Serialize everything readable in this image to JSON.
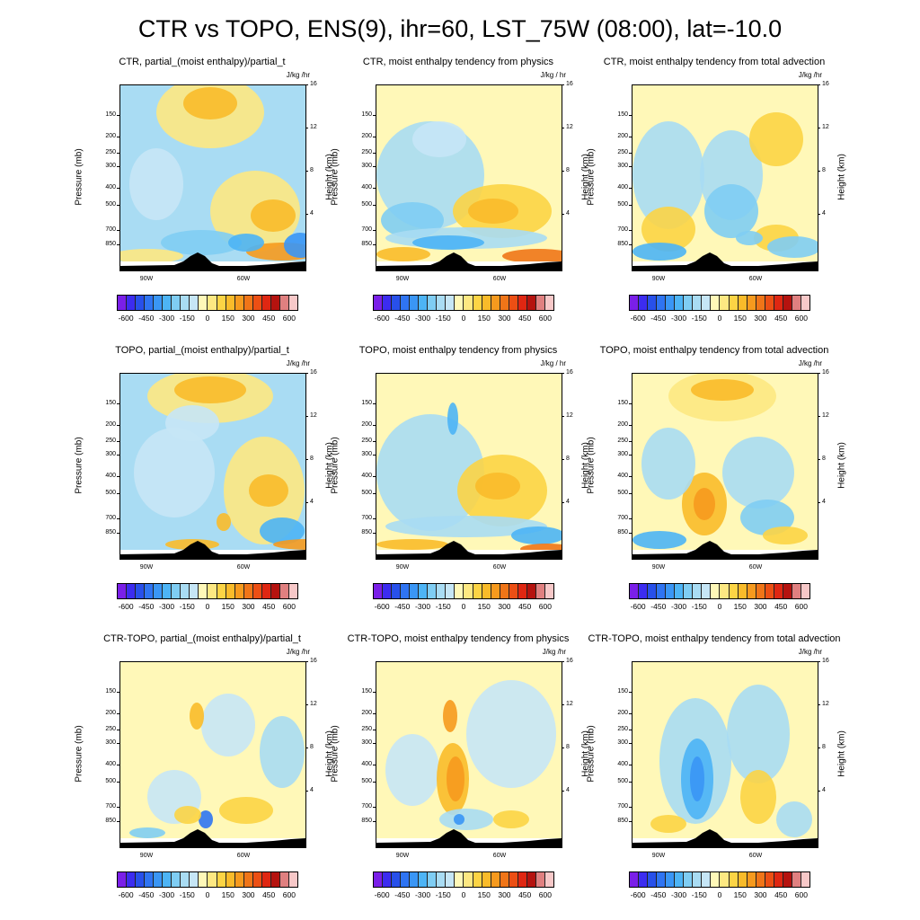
{
  "title": "CTR vs TOPO, ENS(9), ihr=60, LST_75W (08:00), lat=-10.0",
  "common": {
    "units": "J/kg /hr",
    "ylabel_left": "Pressure (mb)",
    "ylabel_right": "Height (km)",
    "pressure_ticks": [
      "150",
      "200",
      "250",
      "300",
      "400",
      "500",
      "700",
      "850"
    ],
    "height_ticks": [
      "16",
      "12",
      "8",
      "4"
    ],
    "x_ticks": [
      "90W",
      "60W"
    ],
    "colorbar_labels": [
      "-600",
      "-450",
      "-300",
      "-150",
      "0",
      "150",
      "300",
      "450",
      "600"
    ],
    "colorbar_colors": [
      "#7a1fe8",
      "#3c2cf0",
      "#2850ea",
      "#2f74f2",
      "#3a96f5",
      "#4db4f5",
      "#7fcdf3",
      "#a9dcf3",
      "#c6e6f6",
      "#fff8b8",
      "#fde882",
      "#fcd445",
      "#f9bb2a",
      "#f69a1e",
      "#f07518",
      "#ec4f14",
      "#df2712",
      "#b5130f",
      "#e08080",
      "#f7c8c8"
    ]
  },
  "panels": [
    {
      "title": "CTR, partial_(moist enthalpy)/partial_t",
      "units": "J/kg /hr"
    },
    {
      "title": "CTR, moist enthalpy tendency from physics",
      "units": "J/kg / hr"
    },
    {
      "title": "CTR, moist enthalpy tendency from total advection",
      "units": "J/kg /hr"
    },
    {
      "title": "TOPO, partial_(moist enthalpy)/partial_t",
      "units": "J/kg /hr"
    },
    {
      "title": "TOPO, moist enthalpy tendency from physics",
      "units": "J/kg / hr"
    },
    {
      "title": "TOPO, moist enthalpy tendency from total advection",
      "units": "J/kg /hr"
    },
    {
      "title": "CTR-TOPO, partial_(moist enthalpy)/partial_t",
      "units": "J/kg /hr"
    },
    {
      "title": "CTR-TOPO, moist enthalpy tendency from physics",
      "units": "J/kg /hr"
    },
    {
      "title": "CTR-TOPO, moist enthalpy tendency from total advection",
      "units": "J/kg /hr"
    }
  ],
  "chart_data": {
    "type": "heatmap",
    "layout": "3x3 grid of longitude-pressure cross sections",
    "x_axis": "longitude",
    "y_axis_left": "pressure (mb)",
    "y_axis_right": "height (km)",
    "contour_levels": [
      -600,
      -450,
      -300,
      -150,
      0,
      150,
      300,
      450,
      600
    ],
    "terrain": "black Andes topography near 75W",
    "panels": [
      "CTR, partial_(moist enthalpy)/partial_t",
      "CTR, moist enthalpy tendency from physics",
      "CTR, moist enthalpy tendency from total advection",
      "TOPO, partial_(moist enthalpy)/partial_t",
      "TOPO, moist enthalpy tendency from physics",
      "TOPO, moist enthalpy tendency from total advection",
      "CTR-TOPO, partial_(moist enthalpy)/partial_t",
      "CTR-TOPO, moist enthalpy tendency from physics",
      "CTR-TOPO, moist enthalpy tendency from total advection"
    ]
  }
}
